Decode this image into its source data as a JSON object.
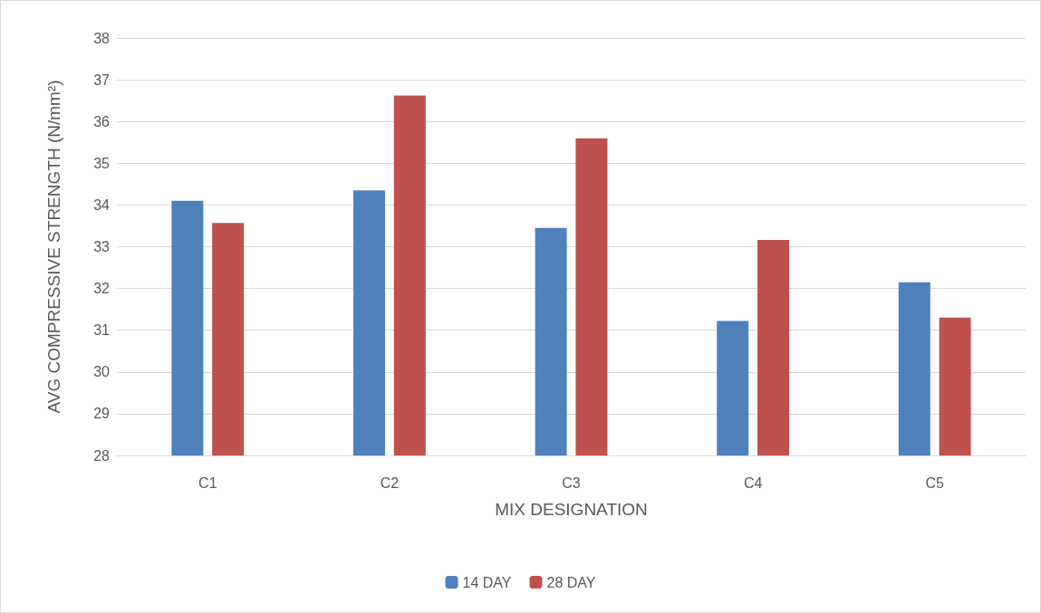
{
  "chart_data": {
    "type": "bar",
    "xlabel": "MIX DESIGNATION",
    "ylabel": "AVG COMPRESSIVE STRENGTH (N/mm²)",
    "categories": [
      "C1",
      "C2",
      "C3",
      "C4",
      "C5"
    ],
    "series": [
      {
        "name": "14 DAY",
        "color": "#4f81bd",
        "values": [
          34.1,
          34.35,
          33.45,
          31.22,
          32.15
        ]
      },
      {
        "name": "28 DAY",
        "color": "#c0504d",
        "values": [
          33.57,
          36.62,
          35.6,
          33.16,
          31.3
        ]
      }
    ],
    "ylim": [
      28,
      38
    ],
    "yticks": [
      28,
      29,
      30,
      31,
      32,
      33,
      34,
      35,
      36,
      37,
      38
    ],
    "grid": "y",
    "legend": "bottom"
  }
}
